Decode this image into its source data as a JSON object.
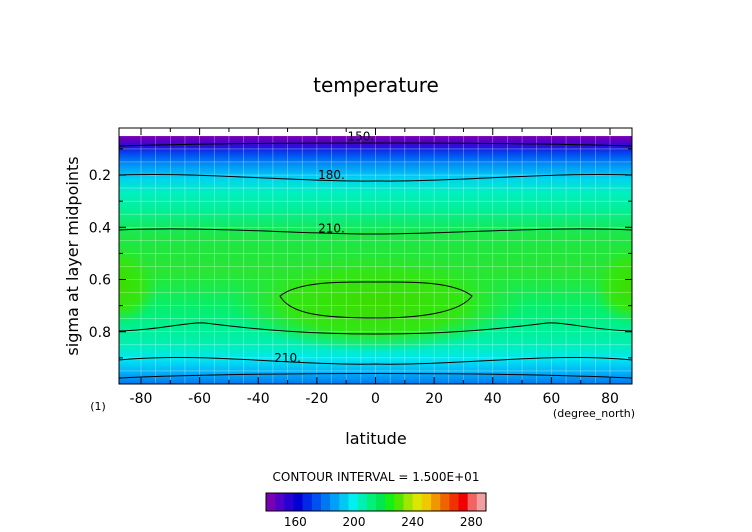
{
  "chart_data": {
    "type": "heatmap",
    "title": "temperature",
    "xlabel": "latitude",
    "ylabel": "sigma at layer midpoints",
    "x_unit": "(degree_north)",
    "frame_label": "(1)",
    "xlim": [
      -87.5,
      87.5
    ],
    "ylim": [
      1.0,
      0.02
    ],
    "x_ticks": [
      "-80",
      "-60",
      "-40",
      "-20",
      "0",
      "20",
      "40",
      "60",
      "80"
    ],
    "x_tick_values": [
      -80,
      -60,
      -40,
      -20,
      0,
      20,
      40,
      60,
      80
    ],
    "y_ticks": [
      "0.2",
      "0.4",
      "0.6",
      "0.8"
    ],
    "y_tick_values": [
      0.2,
      0.4,
      0.6,
      0.8
    ],
    "grid": true,
    "contour_interval_text": "CONTOUR INTERVAL = 1.500E+01",
    "contour_interval": 15,
    "contour_levels": [
      150,
      165,
      180,
      195,
      210,
      225
    ],
    "contour_labels": [
      {
        "text": "150.",
        "x": -5,
        "y": 0.053
      },
      {
        "text": "180.",
        "x": -15,
        "y": 0.2
      },
      {
        "text": "210.",
        "x": -15,
        "y": 0.405
      },
      {
        "text": "210.",
        "x": -30,
        "y": 0.9
      }
    ],
    "colorbar": {
      "colors": [
        "#7a00b4",
        "#5000c8",
        "#2800d2",
        "#0000d2",
        "#0028e6",
        "#0050f0",
        "#0078f0",
        "#00a0f8",
        "#00c8f0",
        "#00f0f0",
        "#00f0b4",
        "#00f078",
        "#00e650",
        "#14f014",
        "#50e600",
        "#a0e600",
        "#dce600",
        "#f0c800",
        "#f09600",
        "#f06400",
        "#f03200",
        "#f00000",
        "#f06464",
        "#f0a0a0"
      ],
      "tick_labels": [
        "160",
        "200",
        "240",
        "280"
      ],
      "tick_values": [
        160,
        200,
        240,
        280
      ],
      "range": [
        140,
        290
      ]
    }
  }
}
